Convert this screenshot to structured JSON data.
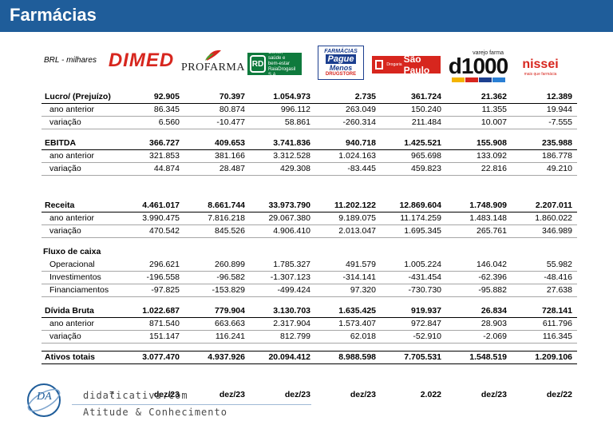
{
  "title": "Farmácias",
  "currency_label": "BRL - milhares",
  "logos": {
    "dimed": "DIMED",
    "profarma": "PROFARMA",
    "rd": {
      "mark": "RD",
      "line1": "Gente,",
      "line2": "saúde e",
      "line3": "bem-estar",
      "line4": "RaiaDrogasil S.A."
    },
    "pague_menos": {
      "line1": "FARMÁCIAS",
      "line2": "Pague",
      "line3": "Menos",
      "line4": "DRUGSTORE"
    },
    "dsp": {
      "small1": "Drogaria",
      "big": "São Paulo"
    },
    "d1000": {
      "small": "varejo farma",
      "num": "d1000"
    },
    "nissei": {
      "name": "nissei",
      "slogan": "mais que farmácia"
    }
  },
  "rows": [
    {
      "label": "Lucro/ (Prejuízo)",
      "kind": "head",
      "values": [
        "92.905",
        "70.397",
        "1.054.973",
        "2.735",
        "361.724",
        "21.362",
        "12.389"
      ]
    },
    {
      "label": "ano anterior",
      "kind": "sub",
      "values": [
        "86.345",
        "80.874",
        "996.112",
        "263.049",
        "150.240",
        "11.355",
        "19.944"
      ]
    },
    {
      "label": "variação",
      "kind": "sub",
      "values": [
        "6.560",
        "-10.477",
        "58.861",
        "-260.314",
        "211.484",
        "10.007",
        "-7.555"
      ],
      "negative": [
        false,
        true,
        false,
        true,
        false,
        false,
        true
      ]
    },
    {
      "label": "EBITDA",
      "kind": "head",
      "values": [
        "366.727",
        "409.653",
        "3.741.836",
        "940.718",
        "1.425.521",
        "155.908",
        "235.988"
      ]
    },
    {
      "label": "ano anterior",
      "kind": "sub",
      "values": [
        "321.853",
        "381.166",
        "3.312.528",
        "1.024.163",
        "965.698",
        "133.092",
        "186.778"
      ]
    },
    {
      "label": "variação",
      "kind": "sub",
      "values": [
        "44.874",
        "28.487",
        "429.308",
        "-83.445",
        "459.823",
        "22.816",
        "49.210"
      ],
      "negative": [
        false,
        false,
        false,
        true,
        false,
        false,
        false
      ]
    },
    {
      "label": "Receita",
      "kind": "head",
      "values": [
        "4.461.017",
        "8.661.744",
        "33.973.790",
        "11.202.122",
        "12.869.604",
        "1.748.909",
        "2.207.011"
      ]
    },
    {
      "label": "ano anterior",
      "kind": "sub",
      "values": [
        "3.990.475",
        "7.816.218",
        "29.067.380",
        "9.189.075",
        "11.174.259",
        "1.483.148",
        "1.860.022"
      ]
    },
    {
      "label": "variação",
      "kind": "sub",
      "values": [
        "470.542",
        "845.526",
        "4.906.410",
        "2.013.047",
        "1.695.345",
        "265.761",
        "346.989"
      ]
    },
    {
      "label": "Fluxo de caixa",
      "kind": "sec",
      "values": []
    },
    {
      "label": "Operacional",
      "kind": "sub",
      "values": [
        "296.621",
        "260.899",
        "1.785.327",
        "491.579",
        "1.005.224",
        "146.042",
        "55.982"
      ]
    },
    {
      "label": "Investimentos",
      "kind": "sub",
      "values": [
        "-196.558",
        "-96.582",
        "-1.307.123",
        "-314.141",
        "-431.454",
        "-62.396",
        "-48.416"
      ]
    },
    {
      "label": "Financiamentos",
      "kind": "sub",
      "values": [
        "-97.825",
        "-153.829",
        "-499.424",
        "97.320",
        "-730.730",
        "-95.882",
        "27.638"
      ]
    },
    {
      "label": "Dívida Bruta",
      "kind": "head",
      "values": [
        "1.022.687",
        "779.904",
        "3.130.703",
        "1.635.425",
        "919.937",
        "26.834",
        "728.141"
      ]
    },
    {
      "label": "ano anterior",
      "kind": "sub",
      "values": [
        "871.540",
        "663.663",
        "2.317.904",
        "1.573.407",
        "972.847",
        "28.903",
        "611.796"
      ]
    },
    {
      "label": "variação",
      "kind": "sub",
      "values": [
        "151.147",
        "116.241",
        "812.799",
        "62.018",
        "-52.910",
        "-2.069",
        "116.345"
      ]
    },
    {
      "label": "Ativos totais",
      "kind": "total",
      "values": [
        "3.077.470",
        "4.937.926",
        "20.094.412",
        "8.988.598",
        "7.705.531",
        "1.548.519",
        "1.209.106"
      ]
    }
  ],
  "dates": {
    "page_number": "7",
    "values": [
      "dez/23",
      "dez/23",
      "dez/23",
      "dez/23",
      "2.022",
      "dez/23",
      "dez/22"
    ]
  },
  "footer": {
    "logo_letters": "DA",
    "site": "didaticativa.com",
    "slogan": "Atitude & Conhecimento"
  },
  "colors": {
    "header_bar": "#1f5d9a",
    "negative_highlight": "#f6c9cf",
    "dimed_red": "#d7261e",
    "rd_green": "#0f7a3d",
    "pague_menos_blue": "#1c3f8f"
  }
}
